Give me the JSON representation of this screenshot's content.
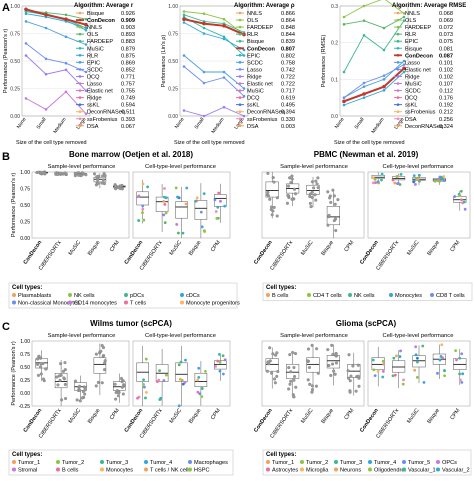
{
  "panels": {
    "A": "A",
    "B": "B",
    "C": "C"
  },
  "colors": {
    "ConDecon": "#c0392b",
    "others": [
      "#f08cb4",
      "#f5a05a",
      "#8cc63f",
      "#8cc63f",
      "#59b36b",
      "#3cb88f",
      "#30b8b0",
      "#2ea8d8",
      "#4aa0e0",
      "#6b8ef5",
      "#9b7df0",
      "#c877e0",
      "#e070c8",
      "#f06aa0",
      "#3f6fd9",
      "#ffb35c"
    ]
  },
  "chart_data": [
    {
      "type": "line",
      "panel": "A",
      "ylabel": "Performance (Pearson's r)",
      "xlabel": "Size of the cell type removed",
      "categories": [
        "None",
        "Small",
        "Medium",
        "Large"
      ],
      "ylim": [
        0,
        1.0
      ],
      "yticks": [
        "0.00",
        "0.25",
        "0.50",
        "0.75",
        "1.00"
      ],
      "legend_title": "Algorithm: Average r",
      "legend": [
        {
          "name": "Bisque",
          "value": "0.926"
        },
        {
          "name": "ConDecon",
          "value": "0.909",
          "bold": true
        },
        {
          "name": "NNLS",
          "value": "0.903"
        },
        {
          "name": "OLS",
          "value": "0.893"
        },
        {
          "name": "FARDEEP",
          "value": "0.883"
        },
        {
          "name": "MuSiC",
          "value": "0.879"
        },
        {
          "name": "RLR",
          "value": "0.875"
        },
        {
          "name": "EPIC",
          "value": "0.869"
        },
        {
          "name": "SCDC",
          "value": "0.852"
        },
        {
          "name": "DCQ",
          "value": "0.771"
        },
        {
          "name": "Lasso",
          "value": "0.757"
        },
        {
          "name": "Elastic net",
          "value": "0.755"
        },
        {
          "name": "Ridge",
          "value": "0.749"
        },
        {
          "name": "ssKL",
          "value": "0.594"
        },
        {
          "name": "DeconRNASeq",
          "value": "0.511"
        },
        {
          "name": "ssFrobenius",
          "value": "0.393"
        },
        {
          "name": "DSA",
          "value": "0.067"
        }
      ],
      "series": [
        {
          "name": "ConDecon",
          "values": [
            0.97,
            0.92,
            0.88,
            0.83
          ]
        },
        {
          "name": "Bisque",
          "values": [
            0.96,
            0.94,
            0.92,
            0.88
          ]
        },
        {
          "name": "NNLS",
          "values": [
            0.95,
            0.93,
            0.88,
            0.8
          ]
        },
        {
          "name": "OLS",
          "values": [
            0.95,
            0.92,
            0.87,
            0.78
          ]
        },
        {
          "name": "MuSiC",
          "values": [
            0.93,
            0.9,
            0.86,
            0.8
          ]
        },
        {
          "name": "Lasso",
          "values": [
            0.86,
            0.8,
            0.72,
            0.65
          ]
        },
        {
          "name": "DeconRNASeq",
          "values": [
            0.66,
            0.52,
            0.48,
            0.4
          ]
        },
        {
          "name": "ssFrobenius",
          "values": [
            0.55,
            0.38,
            0.42,
            0.23
          ]
        },
        {
          "name": "DSA",
          "values": [
            0.16,
            0.06,
            0.22,
            0.02
          ]
        }
      ]
    },
    {
      "type": "line",
      "panel": "A",
      "ylabel": "Performance (Lin's ρ)",
      "xlabel": "Size of the cell type removed",
      "categories": [
        "None",
        "Small",
        "Medium",
        "Large"
      ],
      "ylim": [
        0,
        1.0
      ],
      "yticks": [
        "0.00",
        "0.25",
        "0.50",
        "0.75",
        "1.00"
      ],
      "legend_title": "Algorithm: Average ρ",
      "legend": [
        {
          "name": "NNLS",
          "value": "0.866"
        },
        {
          "name": "OLS",
          "value": "0.864"
        },
        {
          "name": "FARDEEP",
          "value": "0.848"
        },
        {
          "name": "RLR",
          "value": "0.844"
        },
        {
          "name": "Bisque",
          "value": "0.839"
        },
        {
          "name": "ConDecon",
          "value": "0.807",
          "bold": true
        },
        {
          "name": "EPIC",
          "value": "0.802"
        },
        {
          "name": "SCDC",
          "value": "0.758"
        },
        {
          "name": "Lasso",
          "value": "0.742"
        },
        {
          "name": "Ridge",
          "value": "0.722"
        },
        {
          "name": "Elastic net",
          "value": "0.722"
        },
        {
          "name": "MuSiC",
          "value": "0.717"
        },
        {
          "name": "DCQ",
          "value": "0.619"
        },
        {
          "name": "ssKL",
          "value": "0.495"
        },
        {
          "name": "DeconRNASeq",
          "value": "0.394"
        },
        {
          "name": "ssFrobenius",
          "value": "0.330"
        },
        {
          "name": "DSA",
          "value": "0.003"
        }
      ],
      "series": [
        {
          "name": "NNLS",
          "values": [
            0.95,
            0.93,
            0.88,
            0.74
          ]
        },
        {
          "name": "ConDecon",
          "values": [
            0.88,
            0.84,
            0.82,
            0.74
          ]
        },
        {
          "name": "Bisque",
          "values": [
            0.92,
            0.86,
            0.84,
            0.76
          ]
        },
        {
          "name": "MuSiC",
          "values": [
            0.9,
            0.8,
            0.72,
            0.55
          ]
        },
        {
          "name": "Lasso",
          "values": [
            0.85,
            0.75,
            0.7,
            0.6
          ]
        },
        {
          "name": "DeconRNASeq",
          "values": [
            0.55,
            0.4,
            0.4,
            0.25
          ]
        },
        {
          "name": "ssFrobenius",
          "values": [
            0.45,
            0.3,
            0.35,
            0.18
          ]
        },
        {
          "name": "DSA",
          "values": [
            0.05,
            0.0,
            0.08,
            0.0
          ]
        }
      ]
    },
    {
      "type": "line",
      "panel": "A",
      "ylabel": "Performance (RMSE)",
      "xlabel": "Size of the cell type removed",
      "categories": [
        "None",
        "Small",
        "Medium",
        "Large"
      ],
      "ylim": [
        0,
        0.3
      ],
      "yticks": [
        "0.0",
        "0.1",
        "0.2",
        "0.3"
      ],
      "legend_title": "Algorithm: Average RMSE",
      "legend": [
        {
          "name": "NNLS",
          "value": "0.068"
        },
        {
          "name": "OLS",
          "value": "0.069"
        },
        {
          "name": "FARDEEP",
          "value": "0.072"
        },
        {
          "name": "RLR",
          "value": "0.073"
        },
        {
          "name": "EPIC",
          "value": "0.075"
        },
        {
          "name": "Bisque",
          "value": "0.081"
        },
        {
          "name": "ConDecon",
          "value": "0.087",
          "bold": true
        },
        {
          "name": "Lasso",
          "value": "0.101"
        },
        {
          "name": "Elastic net",
          "value": "0.102"
        },
        {
          "name": "Ridge",
          "value": "0.102"
        },
        {
          "name": "MuSiC",
          "value": "0.107"
        },
        {
          "name": "SCDC",
          "value": "0.112"
        },
        {
          "name": "DCQ",
          "value": "0.176"
        },
        {
          "name": "ssKL",
          "value": "0.192"
        },
        {
          "name": "ssFrobenius",
          "value": "0.212"
        },
        {
          "name": "DSA",
          "value": "0.256"
        },
        {
          "name": "DeconRNASeq",
          "value": "0.324"
        }
      ],
      "series": [
        {
          "name": "DeconRNASeq",
          "values": [
            0.27,
            0.3,
            0.32,
            0.28
          ]
        },
        {
          "name": "DSA",
          "values": [
            0.25,
            0.26,
            0.24,
            0.27
          ]
        },
        {
          "name": "ssFrobenius",
          "values": [
            0.12,
            0.22,
            0.18,
            0.26
          ]
        },
        {
          "name": "ConDecon",
          "values": [
            0.04,
            0.06,
            0.08,
            0.13
          ]
        },
        {
          "name": "NNLS",
          "values": [
            0.03,
            0.05,
            0.07,
            0.12
          ]
        },
        {
          "name": "MuSiC",
          "values": [
            0.05,
            0.08,
            0.1,
            0.15
          ]
        },
        {
          "name": "Lasso",
          "values": [
            0.05,
            0.09,
            0.11,
            0.14
          ]
        }
      ]
    },
    {
      "type": "box",
      "panel": "B",
      "title": "Bone marrow (Oetjen et al. 2018)",
      "ylabel": "Performance (Pearson's r)",
      "ylim": [
        0,
        1.0
      ],
      "yticks": [
        "0.00",
        "0.25",
        "0.50",
        "0.75",
        "1.00"
      ],
      "left_header": "Sample-level performance",
      "right_header": "Cell-type-level performance",
      "categories": [
        "ConDecon",
        "CIBERSORTx",
        "MuSiC",
        "Bisque",
        "CPM"
      ],
      "sample_level": [
        {
          "method": "ConDecon",
          "median": 0.99,
          "q1": 0.985,
          "q3": 0.995
        },
        {
          "method": "CIBERSORTx",
          "median": 0.98,
          "q1": 0.975,
          "q3": 0.985
        },
        {
          "method": "MuSiC",
          "median": 0.97,
          "q1": 0.965,
          "q3": 0.98
        },
        {
          "method": "Bisque",
          "median": 0.89,
          "q1": 0.85,
          "q3": 0.92
        },
        {
          "method": "CPM",
          "median": 0.78,
          "q1": 0.77,
          "q3": 0.79
        }
      ],
      "celltype_level": [
        {
          "method": "ConDecon",
          "median": 0.62,
          "q1": 0.5,
          "q3": 0.7
        },
        {
          "method": "CIBERSORTx",
          "median": 0.55,
          "q1": 0.4,
          "q3": 0.62
        },
        {
          "method": "MuSiC",
          "median": 0.47,
          "q1": 0.3,
          "q3": 0.55
        },
        {
          "method": "Bisque",
          "median": 0.45,
          "q1": 0.28,
          "q3": 0.57
        },
        {
          "method": "CPM",
          "median": 0.6,
          "q1": 0.48,
          "q3": 0.66
        }
      ],
      "legend_title": "Cell types:",
      "legend": [
        "Plasmablasts",
        "NK cells",
        "pDCs",
        "cDCs",
        "Non-classical Monocytes",
        "CD14 monocytes",
        "T cells",
        "Monocyte progenitors"
      ]
    },
    {
      "type": "box",
      "panel": "B",
      "title": "PBMC (Newman et al. 2019)",
      "ylim": [
        0,
        1.0
      ],
      "left_header": "Sample-level performance",
      "right_header": "Cell-type-level performance",
      "categories": [
        "ConDecon",
        "CIBERSORTx",
        "MuSiC",
        "Bisque",
        "CPM"
      ],
      "sample_level": [
        {
          "method": "ConDecon",
          "median": 0.72,
          "q1": 0.62,
          "q3": 0.85
        },
        {
          "method": "CIBERSORTx",
          "median": 0.75,
          "q1": 0.68,
          "q3": 0.82
        },
        {
          "method": "MuSiC",
          "median": 0.72,
          "q1": 0.66,
          "q3": 0.8
        },
        {
          "method": "Bisque",
          "median": 0.32,
          "q1": 0.2,
          "q3": 0.48
        },
        {
          "method": "CPM",
          "median": null
        }
      ],
      "celltype_level": [
        {
          "method": "ConDecon",
          "median": 0.92,
          "q1": 0.9,
          "q3": 0.95
        },
        {
          "method": "CIBERSORTx",
          "median": 0.9,
          "q1": 0.88,
          "q3": 0.93
        },
        {
          "method": "MuSiC",
          "median": 0.89,
          "q1": 0.87,
          "q3": 0.92
        },
        {
          "method": "Bisque",
          "median": 0.88,
          "q1": 0.86,
          "q3": 0.9
        },
        {
          "method": "CPM",
          "median": 0.58,
          "q1": 0.54,
          "q3": 0.63
        }
      ],
      "legend_title": "Cell types:",
      "legend": [
        "B cells",
        "CD4 T cells",
        "NK cells",
        "Monocytes",
        "CD8 T cells"
      ]
    },
    {
      "type": "box",
      "panel": "C",
      "title": "Wilms tumor (scPCA)",
      "ylabel": "Performance (Pearson's r)",
      "ylim": [
        -0.25,
        1.0
      ],
      "yticks": [
        "-0.25",
        "0.00",
        "0.25",
        "0.50",
        "0.75",
        "1.00"
      ],
      "left_header": "Sample-level performance",
      "right_header": "Cell-type-level performance",
      "categories": [
        "ConDecon",
        "CIBERSORTx",
        "MuSiC",
        "Bisque",
        "CPM"
      ],
      "sample_level": [
        {
          "method": "ConDecon",
          "median": 0.58,
          "q1": 0.48,
          "q3": 0.66
        },
        {
          "method": "CIBERSORTx",
          "median": 0.22,
          "q1": 0.1,
          "q3": 0.38
        },
        {
          "method": "MuSiC",
          "median": 0.12,
          "q1": 0.05,
          "q3": 0.2
        },
        {
          "method": "Bisque",
          "median": 0.55,
          "q1": 0.38,
          "q3": 0.68
        },
        {
          "method": "CPM",
          "median": 0.12,
          "q1": 0.05,
          "q3": 0.22
        }
      ],
      "celltype_level": [
        {
          "method": "ConDecon",
          "median": 0.4,
          "q1": 0.22,
          "q3": 0.58
        },
        {
          "method": "CIBERSORTx",
          "median": 0.38,
          "q1": 0.22,
          "q3": 0.55
        },
        {
          "method": "MuSiC",
          "median": 0.36,
          "q1": 0.22,
          "q3": 0.58
        },
        {
          "method": "Bisque",
          "median": 0.22,
          "q1": 0.12,
          "q3": 0.38
        },
        {
          "method": "CPM",
          "median": 0.55,
          "q1": 0.46,
          "q3": 0.62
        }
      ],
      "legend_title": "Cell types:",
      "legend": [
        "Tumor_1",
        "Tumor_2",
        "Tumor_3",
        "Tumor_4",
        "Macrophages",
        "Stromal",
        "B cells",
        "Monocytes",
        "T cells / NK cells",
        "HSPC"
      ]
    },
    {
      "type": "box",
      "panel": "C",
      "title": "Glioma (scPCA)",
      "ylim": [
        -0.25,
        1.0
      ],
      "left_header": "Sample-level performance",
      "right_header": "Cell-type-level performance",
      "categories": [
        "ConDecon",
        "CIBERSORTx",
        "MuSiC",
        "Bisque",
        "CPM"
      ],
      "sample_level": [
        {
          "method": "ConDecon",
          "median": 0.55,
          "q1": 0.42,
          "q3": 0.66
        },
        {
          "method": "CIBERSORTx",
          "median": 0.4,
          "q1": 0.28,
          "q3": 0.55
        },
        {
          "method": "MuSiC",
          "median": 0.55,
          "q1": 0.4,
          "q3": 0.68
        },
        {
          "method": "Bisque",
          "median": 0.62,
          "q1": 0.48,
          "q3": 0.72
        },
        {
          "method": "CPM",
          "median": 0.42,
          "q1": 0.3,
          "q3": 0.55
        }
      ],
      "celltype_level": [
        {
          "method": "ConDecon",
          "median": 0.55,
          "q1": 0.45,
          "q3": 0.68
        },
        {
          "method": "CIBERSORTx",
          "median": 0.5,
          "q1": 0.4,
          "q3": 0.62
        },
        {
          "method": "MuSiC",
          "median": 0.62,
          "q1": 0.5,
          "q3": 0.72
        },
        {
          "method": "Bisque",
          "median": 0.65,
          "q1": 0.55,
          "q3": 0.75
        },
        {
          "method": "CPM",
          "median": 0.55,
          "q1": 0.45,
          "q3": 0.66
        }
      ],
      "legend_title": "Cell types:",
      "legend": [
        "Tumor_1",
        "Tumor_2",
        "Tumor_3",
        "Tumor_4",
        "Tumor_5",
        "OPCs",
        "Astrocytes",
        "Microglia",
        "Neurons",
        "Oligodendro.",
        "Vascular_1",
        "Vascular_2"
      ]
    }
  ]
}
